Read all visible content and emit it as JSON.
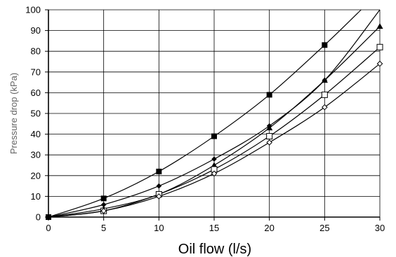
{
  "chart_data": {
    "type": "line",
    "title": "",
    "xlabel": "Oil flow (l/s)",
    "ylabel": "Pressure drop (kPa)",
    "xlim": [
      0,
      30
    ],
    "ylim": [
      0,
      100
    ],
    "xticks": [
      0,
      5,
      10,
      15,
      20,
      25,
      30
    ],
    "yticks": [
      0,
      10,
      20,
      30,
      40,
      50,
      60,
      70,
      80,
      90,
      100
    ],
    "grid": true,
    "legend": "none",
    "series": [
      {
        "marker": "filled-square",
        "x": [
          0,
          5,
          10,
          15,
          20,
          25
        ],
        "y": [
          0,
          9,
          22,
          39,
          59,
          83
        ],
        "curve_end": [
          28.3,
          100
        ]
      },
      {
        "marker": "filled-diamond",
        "x": [
          0,
          5,
          10,
          15,
          20,
          25
        ],
        "y": [
          0,
          6,
          15,
          28,
          44,
          66
        ],
        "curve_end": [
          30,
          100
        ]
      },
      {
        "marker": "filled-triangle",
        "x": [
          0,
          5,
          10,
          15,
          20,
          25,
          30
        ],
        "y": [
          0,
          4,
          11,
          25,
          43,
          66,
          92
        ],
        "curve_end": null
      },
      {
        "marker": "open-square",
        "x": [
          0,
          5,
          10,
          15,
          20,
          25,
          30
        ],
        "y": [
          0,
          3,
          11,
          23,
          39,
          59,
          82
        ],
        "curve_end": null
      },
      {
        "marker": "open-diamond",
        "x": [
          0,
          5,
          10,
          15,
          20,
          25,
          30
        ],
        "y": [
          0,
          3,
          10,
          21,
          36,
          53,
          74
        ],
        "curve_end": null
      }
    ]
  }
}
